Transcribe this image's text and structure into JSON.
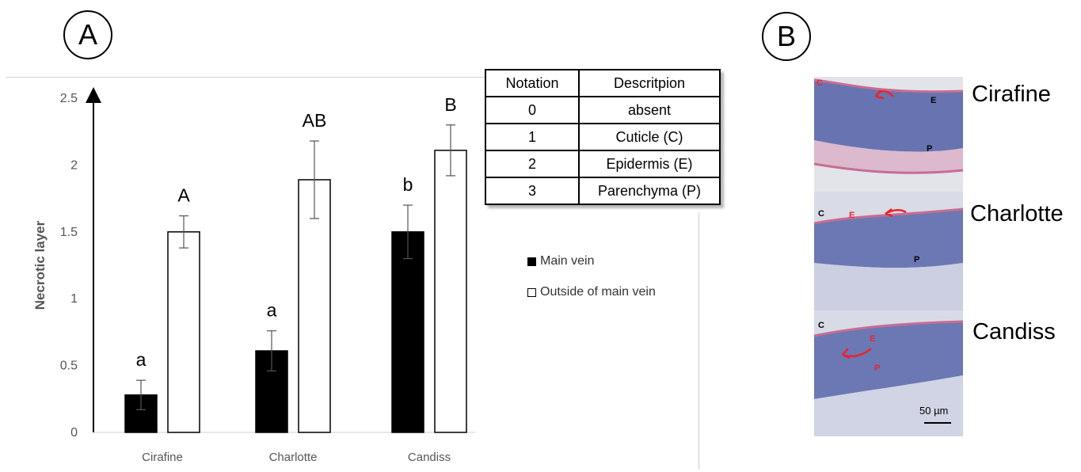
{
  "panel_a_label": "A",
  "panel_b_label": "B",
  "chart_data": {
    "type": "bar",
    "title": "",
    "xlabel": "",
    "ylabel": "Necrotic layer",
    "ylim": [
      0,
      2.5
    ],
    "yticks": [
      "0",
      "0.5",
      "1",
      "1.5",
      "2",
      "2.5"
    ],
    "categories": [
      "Cirafine",
      "Charlotte",
      "Candiss"
    ],
    "series": [
      {
        "name": "Main vein",
        "color": "#000000",
        "values": [
          0.28,
          0.61,
          1.5
        ],
        "errors": [
          0.11,
          0.15,
          0.2
        ],
        "letters": [
          "a",
          "a",
          "b"
        ]
      },
      {
        "name": "Outside of main vein",
        "color": "#ffffff",
        "values": [
          1.5,
          1.89,
          2.11
        ],
        "errors": [
          0.12,
          0.29,
          0.19
        ],
        "letters": [
          "A",
          "AB",
          "B"
        ]
      }
    ],
    "grid": false,
    "legend_position": "right"
  },
  "notation_table": {
    "headers": [
      "Notation",
      "Descritpion"
    ],
    "rows": [
      [
        "0",
        "absent"
      ],
      [
        "1",
        "Cuticle (C)"
      ],
      [
        "2",
        "Epidermis (E)"
      ],
      [
        "3",
        "Parenchyma (P)"
      ]
    ]
  },
  "micrograph": {
    "sections": [
      {
        "cultivar": "Cirafine",
        "letters": [
          "C",
          "E",
          "P"
        ]
      },
      {
        "cultivar": "Charlotte",
        "letters": [
          "C",
          "E",
          "P"
        ]
      },
      {
        "cultivar": "Candiss",
        "letters": [
          "C",
          "E",
          "P"
        ]
      }
    ],
    "scale_bar": "50 µm",
    "colors": {
      "tissue_blue": "#3d4f9e",
      "tissue_pink": "#c76d92",
      "background": "#d8dbe6",
      "arrow_red": "#e8262b"
    }
  }
}
